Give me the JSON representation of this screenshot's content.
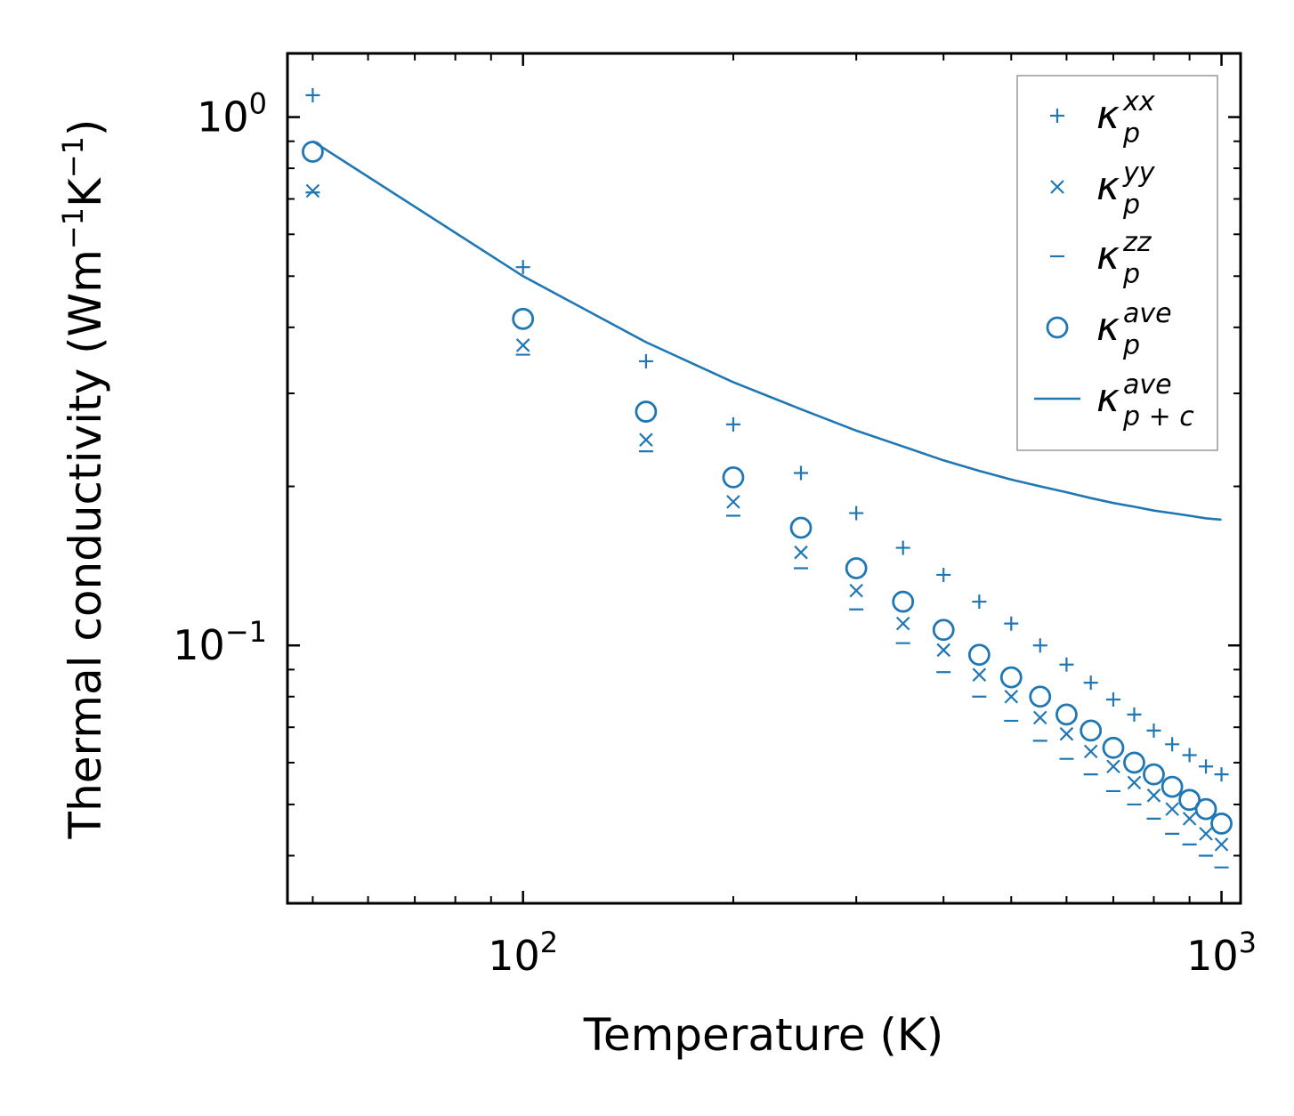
{
  "chart_data": {
    "type": "scatter",
    "title": "",
    "xlabel": "Temperature (K)",
    "ylabel": {
      "prefix": "Thermal conductivity (Wm",
      "sup1": "−1",
      "mid": "K",
      "sup2": "−1",
      "suffix": ")"
    },
    "xscale": "log",
    "yscale": "log",
    "xlim": [
      46,
      1065
    ],
    "ylim": [
      0.0325,
      1.32
    ],
    "xticks": [
      {
        "value": 100,
        "base": "10",
        "exp": "2"
      },
      {
        "value": 1000,
        "base": "10",
        "exp": "3"
      }
    ],
    "yticks": [
      {
        "value": 0.1,
        "base": "10",
        "exp": "−1"
      },
      {
        "value": 1,
        "base": "10",
        "exp": "0"
      }
    ],
    "color": "#1f77b4",
    "legend_position": "top-right",
    "x": [
      50,
      100,
      150,
      200,
      250,
      300,
      350,
      400,
      450,
      500,
      550,
      600,
      650,
      700,
      750,
      800,
      850,
      900,
      950,
      1000
    ],
    "series": [
      {
        "name": "kappa_p_xx",
        "symbol": "κ",
        "sub": "p",
        "sup": "xx",
        "marker": "plus",
        "values": [
          1.1,
          0.52,
          0.345,
          0.262,
          0.212,
          0.178,
          0.153,
          0.136,
          0.121,
          0.11,
          0.1,
          0.092,
          0.085,
          0.079,
          0.074,
          0.069,
          0.065,
          0.062,
          0.059,
          0.057
        ]
      },
      {
        "name": "kappa_p_yy",
        "symbol": "κ",
        "sub": "p",
        "sup": "yy",
        "marker": "x",
        "values": [
          0.725,
          0.37,
          0.245,
          0.187,
          0.15,
          0.127,
          0.11,
          0.098,
          0.088,
          0.08,
          0.073,
          0.068,
          0.063,
          0.059,
          0.055,
          0.052,
          0.049,
          0.047,
          0.044,
          0.042
        ]
      },
      {
        "name": "kappa_p_zz",
        "symbol": "κ",
        "sub": "p",
        "sup": "zz",
        "marker": "hline",
        "values": [
          0.72,
          0.355,
          0.233,
          0.176,
          0.14,
          0.117,
          0.101,
          0.089,
          0.08,
          0.072,
          0.066,
          0.061,
          0.057,
          0.053,
          0.05,
          0.047,
          0.044,
          0.042,
          0.04,
          0.038
        ]
      },
      {
        "name": "kappa_p_ave",
        "symbol": "κ",
        "sub": "p",
        "sup": "ave",
        "marker": "circle",
        "values": [
          0.86,
          0.415,
          0.277,
          0.208,
          0.167,
          0.14,
          0.121,
          0.107,
          0.096,
          0.087,
          0.08,
          0.074,
          0.069,
          0.064,
          0.06,
          0.057,
          0.054,
          0.051,
          0.049,
          0.046
        ]
      },
      {
        "name": "kappa_p+c_ave",
        "symbol": "κ",
        "sub": "p + c",
        "sup": "ave",
        "marker": "line",
        "values": [
          0.9,
          0.5,
          0.375,
          0.315,
          0.28,
          0.255,
          0.238,
          0.224,
          0.214,
          0.206,
          0.2,
          0.195,
          0.19,
          0.186,
          0.183,
          0.18,
          0.178,
          0.176,
          0.174,
          0.173
        ]
      }
    ]
  }
}
